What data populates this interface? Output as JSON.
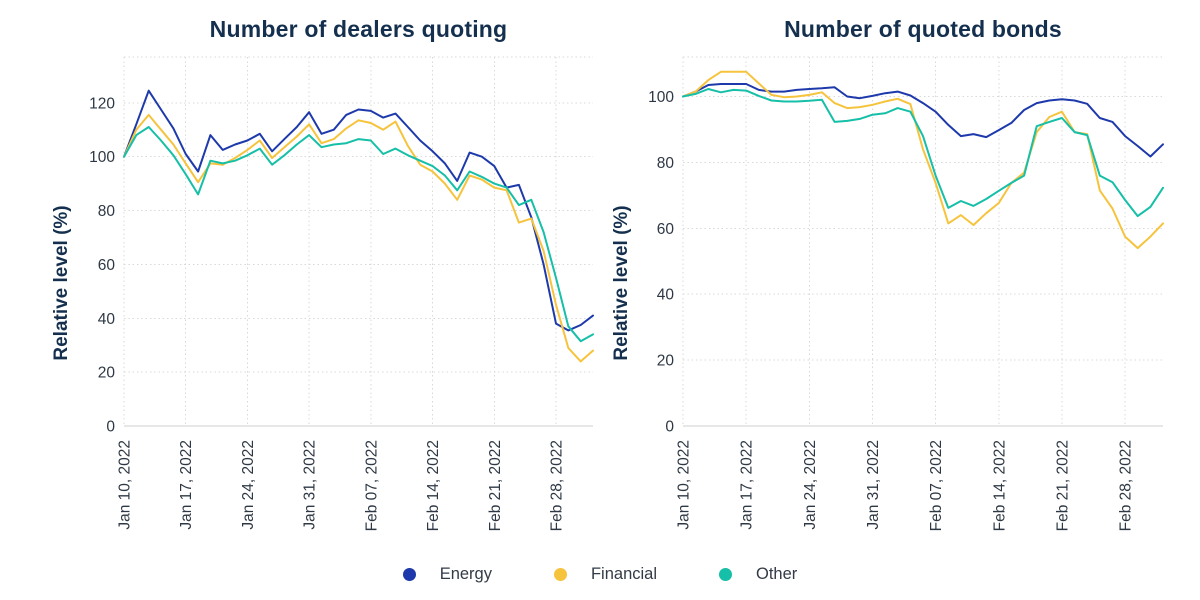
{
  "figure": {
    "background": "#ffffff",
    "title_color": "#14304e",
    "tick_label_color": "#2e3844",
    "grid_color": "#d9d9d9",
    "axis_line_color": "#cfcfcf"
  },
  "legend": {
    "items": [
      {
        "label": "Energy",
        "color": "#1d39ab"
      },
      {
        "label": "Financial",
        "color": "#f6c33d"
      },
      {
        "label": "Other",
        "color": "#16bfa7"
      }
    ]
  },
  "chart_data": [
    {
      "type": "line",
      "title": "Number of dealers quoting",
      "xlabel": "",
      "ylabel": "Relative level (%)",
      "ylim": [
        0,
        137
      ],
      "yticks": [
        0,
        20,
        40,
        60,
        80,
        100,
        120
      ],
      "grid": true,
      "legend_position": "bottom",
      "x_tick_labels": [
        "Jan 10, 2022",
        "Jan 17, 2022",
        "Jan 24, 2022",
        "Jan 31, 2022",
        "Feb 07, 2022",
        "Feb 14, 2022",
        "Feb 21, 2022",
        "Feb 28, 2022"
      ],
      "x_tick_indices": [
        0,
        5,
        10,
        15,
        20,
        25,
        30,
        35
      ],
      "x": [
        "2022-01-10",
        "2022-01-11",
        "2022-01-12",
        "2022-01-13",
        "2022-01-14",
        "2022-01-17",
        "2022-01-18",
        "2022-01-19",
        "2022-01-20",
        "2022-01-21",
        "2022-01-24",
        "2022-01-25",
        "2022-01-26",
        "2022-01-27",
        "2022-01-28",
        "2022-01-31",
        "2022-02-01",
        "2022-02-02",
        "2022-02-03",
        "2022-02-04",
        "2022-02-07",
        "2022-02-08",
        "2022-02-09",
        "2022-02-10",
        "2022-02-11",
        "2022-02-14",
        "2022-02-15",
        "2022-02-16",
        "2022-02-17",
        "2022-02-18",
        "2022-02-21",
        "2022-02-22",
        "2022-02-23",
        "2022-02-24",
        "2022-02-25",
        "2022-02-28",
        "2022-03-01",
        "2022-03-02",
        "2022-03-03"
      ],
      "series": [
        {
          "name": "Energy",
          "color": "#1d39ab",
          "values": [
            100,
            112,
            124.5,
            117.5,
            110.5,
            101,
            94.5,
            108,
            102.5,
            104.5,
            106,
            108.5,
            102,
            106.5,
            111,
            116.5,
            108.5,
            110,
            115.5,
            117.5,
            117,
            114.5,
            116,
            111,
            106,
            102,
            97.5,
            91,
            101.5,
            100,
            96.5,
            88.5,
            89.5,
            77.5,
            60,
            38,
            35.5,
            37.5,
            41
          ]
        },
        {
          "name": "Financial",
          "color": "#f6c33d",
          "values": [
            100,
            110,
            115.5,
            110,
            104.5,
            97.5,
            90.5,
            97.5,
            97,
            99.5,
            102.5,
            106,
            99.5,
            103.5,
            107.5,
            112,
            105,
            106.5,
            110.5,
            113.5,
            112.5,
            110,
            113,
            104,
            97,
            94.5,
            90,
            84,
            93,
            91.5,
            88.5,
            87.5,
            75.5,
            77,
            65,
            45,
            29,
            24,
            28
          ]
        },
        {
          "name": "Other",
          "color": "#16bfa7",
          "values": [
            100,
            108,
            111,
            106,
            100.5,
            93.5,
            86,
            98.5,
            97.5,
            98.5,
            100.5,
            103,
            97,
            100.5,
            104.5,
            108,
            103.5,
            104.5,
            105,
            106.5,
            106,
            101,
            103,
            100.5,
            98.5,
            96.5,
            93,
            87.5,
            94.5,
            92.5,
            90,
            88.5,
            82,
            84,
            72,
            55,
            37,
            31.5,
            34
          ]
        }
      ]
    },
    {
      "type": "line",
      "title": "Number of quoted bonds",
      "xlabel": "",
      "ylabel": "Relative level (%)",
      "ylim": [
        0,
        112
      ],
      "yticks": [
        0,
        20,
        40,
        60,
        80,
        100
      ],
      "grid": true,
      "legend_position": "bottom",
      "x_tick_labels": [
        "Jan 10, 2022",
        "Jan 17, 2022",
        "Jan 24, 2022",
        "Jan 31, 2022",
        "Feb 07, 2022",
        "Feb 14, 2022",
        "Feb 21, 2022",
        "Feb 28, 2022"
      ],
      "x_tick_indices": [
        0,
        5,
        10,
        15,
        20,
        25,
        30,
        35
      ],
      "x": [
        "2022-01-10",
        "2022-01-11",
        "2022-01-12",
        "2022-01-13",
        "2022-01-14",
        "2022-01-17",
        "2022-01-18",
        "2022-01-19",
        "2022-01-20",
        "2022-01-21",
        "2022-01-24",
        "2022-01-25",
        "2022-01-26",
        "2022-01-27",
        "2022-01-28",
        "2022-01-31",
        "2022-02-01",
        "2022-02-02",
        "2022-02-03",
        "2022-02-04",
        "2022-02-07",
        "2022-02-08",
        "2022-02-09",
        "2022-02-10",
        "2022-02-11",
        "2022-02-14",
        "2022-02-15",
        "2022-02-16",
        "2022-02-17",
        "2022-02-18",
        "2022-02-21",
        "2022-02-22",
        "2022-02-23",
        "2022-02-24",
        "2022-02-25",
        "2022-02-28",
        "2022-03-01",
        "2022-03-02",
        "2022-03-03"
      ],
      "series": [
        {
          "name": "Energy",
          "color": "#1d39ab",
          "values": [
            100,
            101.5,
            103.5,
            103.8,
            103.8,
            103.8,
            102,
            101.5,
            101.5,
            102,
            102.3,
            102.5,
            102.8,
            100,
            99.5,
            100.2,
            101,
            101.5,
            100.3,
            98,
            95.4,
            91.4,
            88,
            88.6,
            87.7,
            89.8,
            92,
            95.9,
            98,
            98.8,
            99.2,
            98.8,
            97.8,
            93.5,
            92.3,
            88,
            85,
            81.8,
            85.5
          ]
        },
        {
          "name": "Financial",
          "color": "#f6c33d",
          "values": [
            100,
            101.5,
            105,
            107.5,
            107.5,
            107.5,
            104,
            100.5,
            99.8,
            100,
            100.5,
            101.3,
            98,
            96.5,
            96.8,
            97.5,
            98.5,
            99.3,
            97.7,
            84,
            73.8,
            61.5,
            64,
            61,
            64.6,
            67.7,
            73.8,
            76.9,
            89.2,
            93.8,
            95.4,
            89.2,
            88.6,
            71.5,
            66,
            57.5,
            54,
            57.5,
            61.5
          ]
        },
        {
          "name": "Other",
          "color": "#16bfa7",
          "values": [
            100,
            100.8,
            102.3,
            101.3,
            102,
            101.8,
            100.2,
            98.8,
            98.5,
            98.5,
            98.7,
            99,
            92.3,
            92.6,
            93.2,
            94.5,
            94.9,
            96.5,
            95.4,
            88,
            76,
            66.2,
            68.3,
            66.8,
            68.9,
            71.4,
            73.8,
            76,
            91,
            92.3,
            93.5,
            89.2,
            88.3,
            76,
            74,
            68.6,
            63.7,
            66.5,
            72.3
          ]
        }
      ]
    }
  ]
}
